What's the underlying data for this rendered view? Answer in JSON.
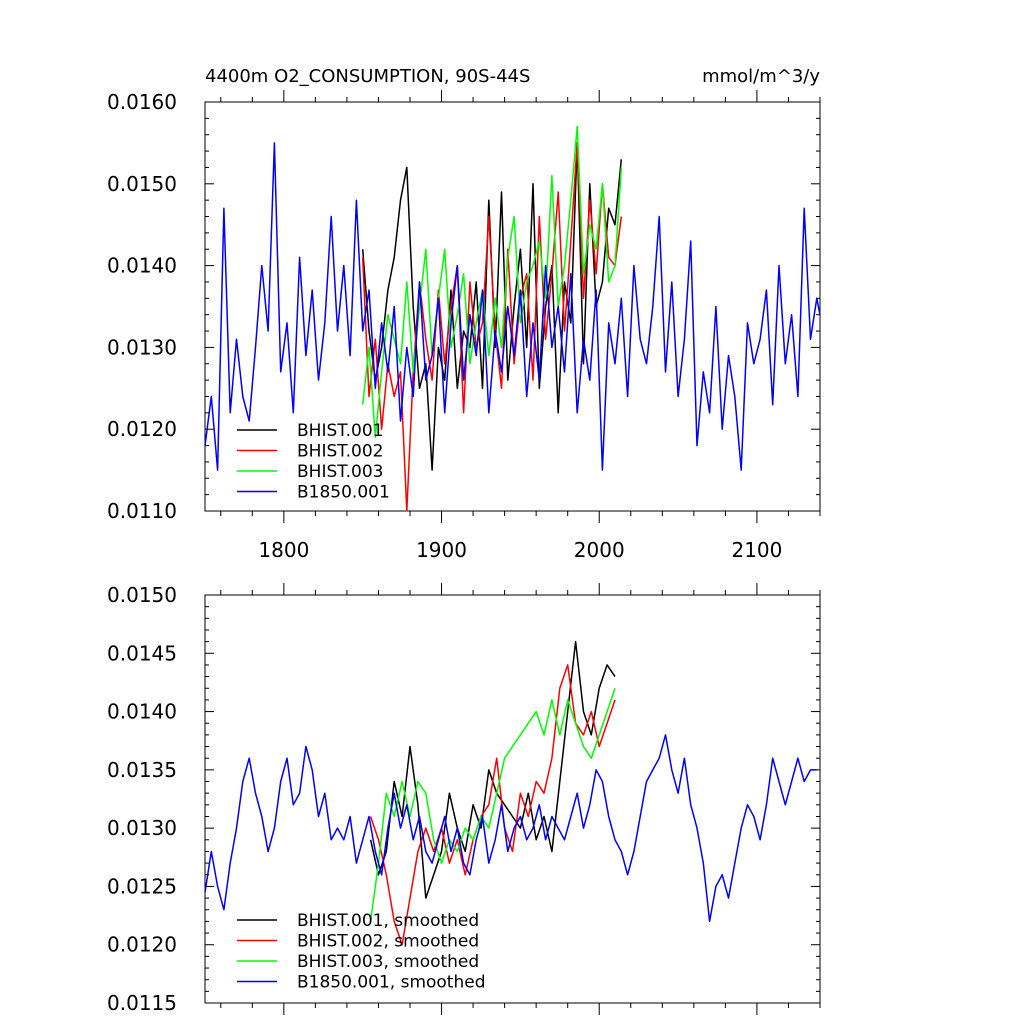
{
  "chart_data": [
    {
      "type": "line",
      "title": "4400m O2_CONSUMPTION, 90S-44S",
      "units_label": "mmol/m^3/y",
      "xlim": [
        1750,
        2140
      ],
      "ylim": [
        0.011,
        0.016
      ],
      "xticks": [
        1800,
        1900,
        2000,
        2100
      ],
      "xtick_labels": [
        "1800",
        "1900",
        "2000",
        "2100"
      ],
      "yticks": [
        0.011,
        0.012,
        0.013,
        0.014,
        0.015,
        0.016
      ],
      "ytick_labels": [
        "0.0110",
        "0.0120",
        "0.0130",
        "0.0140",
        "0.0150",
        "0.0160"
      ],
      "legend_position": "bottom-left",
      "series": [
        {
          "name": "BHIST.001",
          "color": "#000000",
          "x": [
            1850,
            1854,
            1858,
            1862,
            1866,
            1870,
            1874,
            1878,
            1882,
            1886,
            1890,
            1894,
            1898,
            1902,
            1906,
            1910,
            1914,
            1918,
            1922,
            1926,
            1930,
            1934,
            1938,
            1942,
            1946,
            1950,
            1954,
            1958,
            1962,
            1966,
            1970,
            1974,
            1978,
            1982,
            1986,
            1990,
            1994,
            1998,
            2002,
            2006,
            2010,
            2014
          ],
          "values": [
            0.0142,
            0.0132,
            0.0126,
            0.013,
            0.0137,
            0.0141,
            0.0148,
            0.0152,
            0.0135,
            0.0125,
            0.0128,
            0.0115,
            0.013,
            0.0126,
            0.0137,
            0.0125,
            0.0132,
            0.013,
            0.0138,
            0.0125,
            0.0148,
            0.013,
            0.0149,
            0.0126,
            0.0135,
            0.0142,
            0.013,
            0.015,
            0.0125,
            0.0135,
            0.014,
            0.0122,
            0.0138,
            0.0133,
            0.0155,
            0.0128,
            0.015,
            0.0135,
            0.0138,
            0.0147,
            0.0145,
            0.0153
          ]
        },
        {
          "name": "BHIST.002",
          "color": "#ff0000",
          "x": [
            1850,
            1854,
            1858,
            1862,
            1866,
            1870,
            1874,
            1878,
            1882,
            1886,
            1890,
            1894,
            1898,
            1902,
            1906,
            1910,
            1914,
            1918,
            1922,
            1926,
            1930,
            1934,
            1938,
            1942,
            1946,
            1950,
            1954,
            1958,
            1962,
            1966,
            1970,
            1974,
            1978,
            1982,
            1986,
            1990,
            1994,
            1998,
            2002,
            2006,
            2010,
            2014
          ],
          "values": [
            0.0141,
            0.0124,
            0.0131,
            0.012,
            0.0128,
            0.0124,
            0.0127,
            0.011,
            0.0127,
            0.0138,
            0.0131,
            0.0126,
            0.0137,
            0.0128,
            0.0135,
            0.014,
            0.0122,
            0.0138,
            0.013,
            0.0133,
            0.0146,
            0.0132,
            0.0125,
            0.0142,
            0.0128,
            0.0136,
            0.0139,
            0.0126,
            0.0146,
            0.0131,
            0.0139,
            0.0149,
            0.0132,
            0.0143,
            0.0155,
            0.0136,
            0.0148,
            0.0139,
            0.015,
            0.0141,
            0.014,
            0.0146
          ]
        },
        {
          "name": "BHIST.003",
          "color": "#00ff00",
          "x": [
            1850,
            1854,
            1858,
            1862,
            1866,
            1870,
            1874,
            1878,
            1882,
            1886,
            1890,
            1894,
            1898,
            1902,
            1906,
            1910,
            1914,
            1918,
            1922,
            1926,
            1930,
            1934,
            1938,
            1942,
            1946,
            1950,
            1954,
            1958,
            1962,
            1966,
            1970,
            1974,
            1978,
            1982,
            1986,
            1990,
            1994,
            1998,
            2002,
            2006,
            2010,
            2014
          ],
          "values": [
            0.0123,
            0.013,
            0.0119,
            0.0127,
            0.0134,
            0.0131,
            0.0128,
            0.0138,
            0.0127,
            0.0135,
            0.0142,
            0.0129,
            0.0136,
            0.0142,
            0.013,
            0.0134,
            0.0139,
            0.0128,
            0.0133,
            0.0137,
            0.0129,
            0.0136,
            0.013,
            0.0141,
            0.0146,
            0.0133,
            0.0138,
            0.014,
            0.0143,
            0.0136,
            0.0151,
            0.0135,
            0.014,
            0.0148,
            0.0157,
            0.0139,
            0.0145,
            0.0142,
            0.015,
            0.0138,
            0.014,
            0.0152
          ]
        },
        {
          "name": "B1850.001",
          "color": "#0000ff",
          "x": [
            1750,
            1754,
            1758,
            1762,
            1766,
            1770,
            1774,
            1778,
            1782,
            1786,
            1790,
            1794,
            1798,
            1802,
            1806,
            1810,
            1814,
            1818,
            1822,
            1826,
            1830,
            1834,
            1838,
            1842,
            1846,
            1850,
            1854,
            1858,
            1862,
            1866,
            1870,
            1874,
            1878,
            1882,
            1886,
            1890,
            1894,
            1898,
            1902,
            1906,
            1910,
            1914,
            1918,
            1922,
            1926,
            1930,
            1934,
            1938,
            1942,
            1946,
            1950,
            1954,
            1958,
            1962,
            1966,
            1970,
            1974,
            1978,
            1982,
            1986,
            1990,
            1994,
            1998,
            2002,
            2006,
            2010,
            2014,
            2018,
            2022,
            2026,
            2030,
            2034,
            2038,
            2042,
            2046,
            2050,
            2054,
            2058,
            2062,
            2066,
            2070,
            2074,
            2078,
            2082,
            2086,
            2090,
            2094,
            2098,
            2102,
            2106,
            2110,
            2114,
            2118,
            2122,
            2126,
            2130,
            2134,
            2138,
            2140
          ],
          "values": [
            0.0118,
            0.0124,
            0.0115,
            0.0147,
            0.0122,
            0.0131,
            0.0124,
            0.0121,
            0.013,
            0.014,
            0.0132,
            0.0155,
            0.0127,
            0.0133,
            0.0122,
            0.0141,
            0.0129,
            0.0137,
            0.0126,
            0.0133,
            0.0146,
            0.0132,
            0.014,
            0.0129,
            0.0148,
            0.0132,
            0.0137,
            0.0125,
            0.0133,
            0.0127,
            0.0135,
            0.0121,
            0.013,
            0.0124,
            0.0138,
            0.0126,
            0.0129,
            0.0136,
            0.0122,
            0.0133,
            0.014,
            0.0126,
            0.0134,
            0.0129,
            0.0137,
            0.0122,
            0.0132,
            0.0127,
            0.0135,
            0.0129,
            0.0137,
            0.0124,
            0.0133,
            0.0126,
            0.014,
            0.013,
            0.0135,
            0.0127,
            0.0139,
            0.0122,
            0.0131,
            0.0126,
            0.0137,
            0.0115,
            0.0133,
            0.0128,
            0.0136,
            0.0124,
            0.014,
            0.0131,
            0.0128,
            0.0135,
            0.0146,
            0.0127,
            0.0138,
            0.0124,
            0.0131,
            0.0143,
            0.0118,
            0.0127,
            0.0122,
            0.0135,
            0.012,
            0.0129,
            0.0124,
            0.0115,
            0.0133,
            0.0128,
            0.0131,
            0.0137,
            0.0123,
            0.014,
            0.0128,
            0.0134,
            0.0124,
            0.0147,
            0.0131,
            0.0136,
            0.0134
          ]
        }
      ]
    },
    {
      "type": "line",
      "xlim": [
        1750,
        2140
      ],
      "ylim": [
        0.0115,
        0.015
      ],
      "xticks": [
        1800,
        1900,
        2000,
        2100
      ],
      "yticks": [
        0.0115,
        0.012,
        0.0125,
        0.013,
        0.0135,
        0.014,
        0.0145,
        0.015
      ],
      "ytick_labels": [
        "0.0115",
        "0.0120",
        "0.0125",
        "0.0130",
        "0.0135",
        "0.0140",
        "0.0145",
        "0.0150"
      ],
      "legend_position": "bottom-left",
      "series": [
        {
          "name": "BHIST.001, smoothed",
          "color": "#000000",
          "x": [
            1855,
            1860,
            1865,
            1870,
            1875,
            1880,
            1885,
            1890,
            1895,
            1900,
            1905,
            1910,
            1915,
            1920,
            1925,
            1930,
            1935,
            1940,
            1945,
            1950,
            1955,
            1960,
            1965,
            1970,
            1975,
            1980,
            1985,
            1990,
            1995,
            2000,
            2005,
            2010
          ],
          "values": [
            0.0129,
            0.0126,
            0.0128,
            0.0134,
            0.0131,
            0.0137,
            0.0132,
            0.0124,
            0.0126,
            0.0128,
            0.0133,
            0.013,
            0.0128,
            0.0132,
            0.013,
            0.0135,
            0.0133,
            0.0132,
            0.0131,
            0.013,
            0.0133,
            0.0129,
            0.0131,
            0.0128,
            0.0134,
            0.014,
            0.0146,
            0.014,
            0.0138,
            0.0142,
            0.0144,
            0.0143
          ]
        },
        {
          "name": "BHIST.002, smoothed",
          "color": "#ff0000",
          "x": [
            1855,
            1860,
            1865,
            1870,
            1875,
            1880,
            1885,
            1890,
            1895,
            1900,
            1905,
            1910,
            1915,
            1920,
            1925,
            1930,
            1935,
            1940,
            1945,
            1950,
            1955,
            1960,
            1965,
            1970,
            1975,
            1980,
            1985,
            1990,
            1995,
            2000,
            2005,
            2010
          ],
          "values": [
            0.0131,
            0.0129,
            0.0126,
            0.0122,
            0.012,
            0.0124,
            0.0128,
            0.013,
            0.0128,
            0.013,
            0.0127,
            0.0129,
            0.0126,
            0.0129,
            0.0131,
            0.0132,
            0.0136,
            0.013,
            0.0128,
            0.0133,
            0.0131,
            0.0134,
            0.0133,
            0.0136,
            0.0142,
            0.0144,
            0.0139,
            0.0138,
            0.014,
            0.0137,
            0.0139,
            0.0141
          ]
        },
        {
          "name": "BHIST.003, smoothed",
          "color": "#00ff00",
          "x": [
            1855,
            1860,
            1865,
            1870,
            1875,
            1880,
            1885,
            1890,
            1895,
            1900,
            1905,
            1910,
            1915,
            1920,
            1925,
            1930,
            1935,
            1940,
            1945,
            1950,
            1955,
            1960,
            1965,
            1970,
            1975,
            1980,
            1985,
            1990,
            1995,
            2000,
            2005,
            2010
          ],
          "values": [
            0.0122,
            0.0127,
            0.0133,
            0.0131,
            0.0134,
            0.0131,
            0.0134,
            0.0133,
            0.0129,
            0.0127,
            0.0129,
            0.0128,
            0.013,
            0.0129,
            0.0131,
            0.013,
            0.0133,
            0.0136,
            0.0137,
            0.0138,
            0.0139,
            0.014,
            0.0138,
            0.0141,
            0.0138,
            0.0141,
            0.0139,
            0.0137,
            0.0136,
            0.0138,
            0.014,
            0.0142
          ]
        },
        {
          "name": "B1850.001, smoothed",
          "color": "#0000ff",
          "x": [
            1750,
            1754,
            1758,
            1762,
            1766,
            1770,
            1774,
            1778,
            1782,
            1786,
            1790,
            1794,
            1798,
            1802,
            1806,
            1810,
            1814,
            1818,
            1822,
            1826,
            1830,
            1834,
            1838,
            1842,
            1846,
            1850,
            1854,
            1858,
            1862,
            1866,
            1870,
            1874,
            1878,
            1882,
            1886,
            1890,
            1894,
            1898,
            1902,
            1906,
            1910,
            1914,
            1918,
            1922,
            1926,
            1930,
            1934,
            1938,
            1942,
            1946,
            1950,
            1954,
            1958,
            1962,
            1966,
            1970,
            1974,
            1978,
            1982,
            1986,
            1990,
            1994,
            1998,
            2002,
            2006,
            2010,
            2014,
            2018,
            2022,
            2026,
            2030,
            2034,
            2038,
            2042,
            2046,
            2050,
            2054,
            2058,
            2062,
            2066,
            2070,
            2074,
            2078,
            2082,
            2086,
            2090,
            2094,
            2098,
            2102,
            2106,
            2110,
            2114,
            2118,
            2122,
            2126,
            2130,
            2134,
            2138
          ],
          "values": [
            0.01245,
            0.0128,
            0.0125,
            0.0123,
            0.0127,
            0.013,
            0.0134,
            0.0136,
            0.0133,
            0.0131,
            0.0128,
            0.013,
            0.0134,
            0.0136,
            0.0132,
            0.0133,
            0.0137,
            0.0135,
            0.0131,
            0.0133,
            0.0129,
            0.013,
            0.0129,
            0.0131,
            0.0127,
            0.0129,
            0.0131,
            0.0128,
            0.0126,
            0.013,
            0.0133,
            0.013,
            0.0132,
            0.0129,
            0.0131,
            0.0128,
            0.0127,
            0.0129,
            0.0131,
            0.0128,
            0.013,
            0.0127,
            0.0126,
            0.0129,
            0.0131,
            0.0127,
            0.0129,
            0.0132,
            0.0128,
            0.013,
            0.0131,
            0.0129,
            0.013,
            0.0132,
            0.0129,
            0.0131,
            0.013,
            0.0129,
            0.0131,
            0.0133,
            0.013,
            0.0132,
            0.0135,
            0.0134,
            0.0131,
            0.0129,
            0.0128,
            0.0126,
            0.0128,
            0.0131,
            0.0134,
            0.0135,
            0.0136,
            0.0138,
            0.0135,
            0.0133,
            0.0136,
            0.0132,
            0.013,
            0.0127,
            0.0122,
            0.0125,
            0.0126,
            0.0124,
            0.0127,
            0.013,
            0.0132,
            0.0131,
            0.0129,
            0.0132,
            0.0136,
            0.0134,
            0.0132,
            0.0134,
            0.0136,
            0.0134,
            0.0135,
            0.0135
          ]
        }
      ]
    }
  ]
}
